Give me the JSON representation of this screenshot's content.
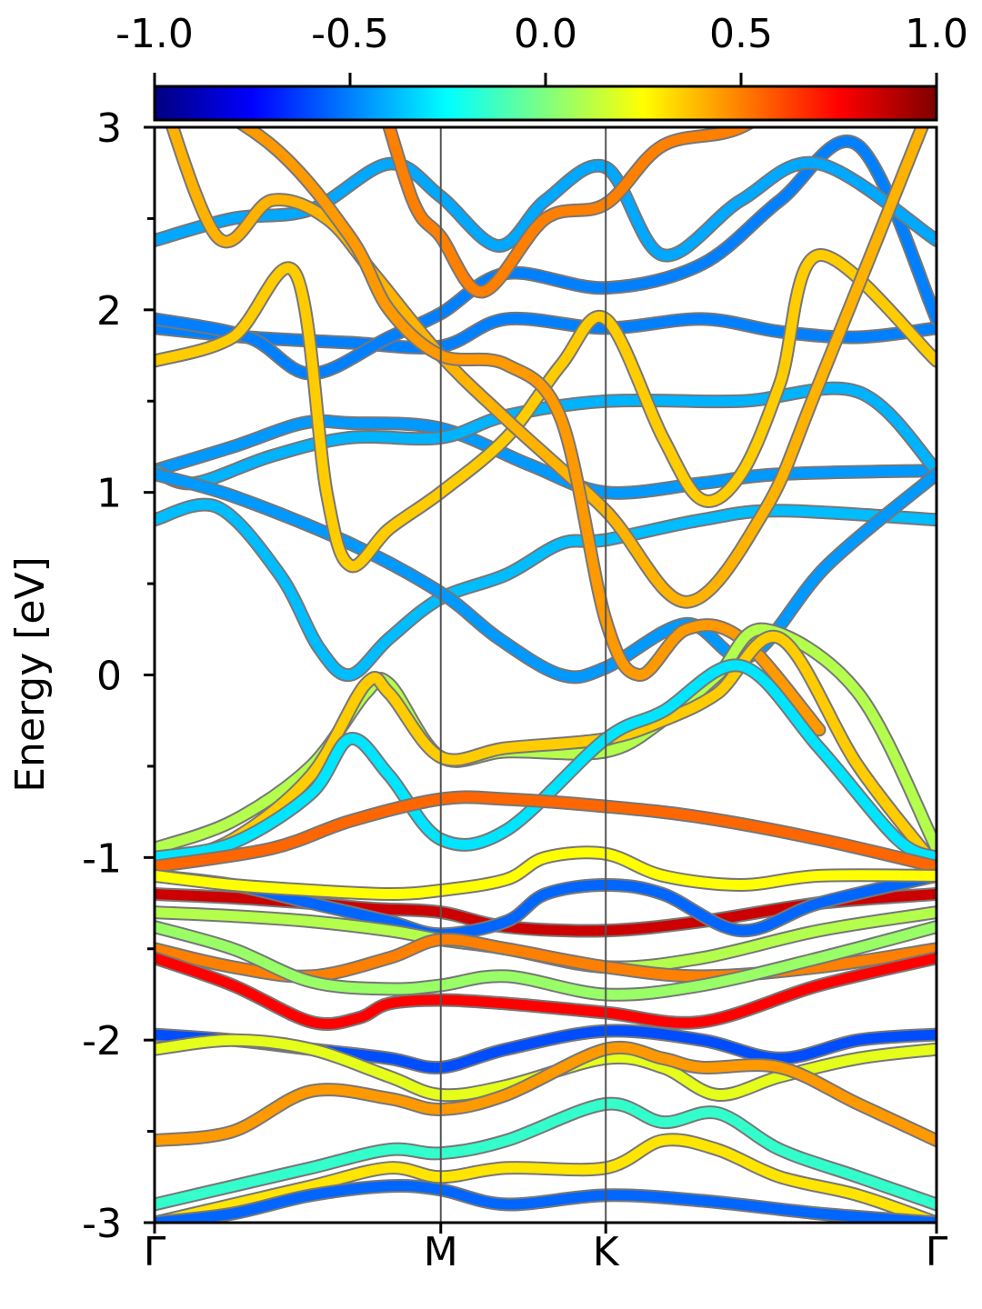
{
  "chart_data": {
    "type": "line",
    "ylabel": "Energy [eV]",
    "ylim": [
      -3,
      3
    ],
    "xlim": [
      0,
      1
    ],
    "grid": false,
    "y_ticks": [
      "3",
      "2",
      "1",
      "0",
      "-1",
      "-2",
      "-3"
    ],
    "y_tick_values": [
      3,
      2,
      1,
      0,
      -1,
      -2,
      -3
    ],
    "k_points": [
      {
        "label": "Γ",
        "x": 0.0
      },
      {
        "label": "M",
        "x": 0.366
      },
      {
        "label": "K",
        "x": 0.577
      },
      {
        "label": "Γ",
        "x": 1.0
      }
    ],
    "colorbar": {
      "range": [
        -1.0,
        1.0
      ],
      "colormap": "jet",
      "position": "top",
      "tick_labels": [
        "-1.0",
        "-0.5",
        "0.0",
        "0.5",
        "1.0"
      ],
      "tick_values": [
        -1.0,
        -0.5,
        0.0,
        0.5,
        1.0
      ]
    },
    "series": [
      {
        "color_value": -0.45,
        "x": [
          0,
          0.1,
          0.19,
          0.25,
          0.366,
          0.48,
          0.577,
          0.7,
          0.8,
          1.0
        ],
        "y": [
          1.12,
          1.25,
          1.38,
          1.38,
          1.35,
          1.15,
          1.0,
          1.05,
          1.1,
          1.12
        ]
      },
      {
        "color_value": -0.4,
        "x": [
          0,
          0.05,
          0.15,
          0.25,
          0.366,
          0.45,
          0.577,
          0.75,
          0.9,
          1.0
        ],
        "y": [
          1.12,
          1.05,
          1.2,
          1.3,
          1.3,
          1.42,
          1.5,
          1.5,
          1.55,
          1.12
        ]
      },
      {
        "color_value": -0.38,
        "x": [
          0,
          0.08,
          0.16,
          0.21,
          0.25,
          0.3,
          0.366,
          0.45,
          0.52,
          0.577,
          0.7,
          0.8,
          1.0
        ],
        "y": [
          0.85,
          0.92,
          0.55,
          0.15,
          0.0,
          0.2,
          0.42,
          0.55,
          0.72,
          0.74,
          0.85,
          0.9,
          0.85
        ]
      },
      {
        "color_value": -0.45,
        "x": [
          0,
          0.1,
          0.25,
          0.366,
          0.44,
          0.52,
          0.577,
          0.68,
          0.76,
          0.86,
          1.0
        ],
        "y": [
          1.1,
          0.98,
          0.72,
          0.45,
          0.2,
          0.0,
          0.04,
          0.28,
          0.1,
          0.6,
          1.1
        ]
      },
      {
        "color_value": -0.5,
        "x": [
          0,
          0.12,
          0.25,
          0.366,
          0.45,
          0.577,
          0.7,
          0.8,
          0.9,
          1.0
        ],
        "y": [
          1.9,
          1.85,
          1.82,
          1.8,
          1.95,
          1.9,
          1.95,
          1.88,
          1.85,
          1.9
        ]
      },
      {
        "color_value": -0.5,
        "x": [
          0,
          0.12,
          0.2,
          0.3,
          0.366,
          0.45,
          0.577,
          0.7,
          0.8,
          0.9,
          1.0
        ],
        "y": [
          1.95,
          1.85,
          1.65,
          1.85,
          1.98,
          2.2,
          2.12,
          2.25,
          2.6,
          2.9,
          1.95
        ]
      },
      {
        "color_value": -0.42,
        "x": [
          0,
          0.1,
          0.2,
          0.3,
          0.366,
          0.44,
          0.5,
          0.577,
          0.65,
          0.75,
          0.85,
          1.0
        ],
        "y": [
          2.38,
          2.5,
          2.55,
          2.8,
          2.62,
          2.35,
          2.6,
          2.78,
          2.3,
          2.6,
          2.8,
          2.38
        ]
      },
      {
        "color_value": 0.35,
        "x": [
          0,
          0.1,
          0.18,
          0.22,
          0.25,
          0.3,
          0.366,
          0.45,
          0.52,
          0.577,
          0.65,
          0.7,
          0.75,
          0.8,
          0.85,
          1.0
        ],
        "y": [
          1.72,
          1.85,
          2.2,
          1.0,
          0.6,
          0.8,
          1.0,
          1.3,
          1.7,
          1.95,
          1.3,
          0.96,
          1.1,
          1.6,
          2.3,
          1.72
        ]
      },
      {
        "color_value": 0.4,
        "x": [
          0,
          0.08,
          0.15,
          0.22,
          0.28,
          0.366,
          0.45,
          0.577,
          0.68,
          0.78,
          0.85,
          1.0
        ],
        "y": [
          3.3,
          2.4,
          2.6,
          2.5,
          2.2,
          1.75,
          1.4,
          0.9,
          0.4,
          0.9,
          1.6,
          3.2
        ]
      },
      {
        "color_value": 0.45,
        "x": [
          0,
          0.15,
          0.25,
          0.3,
          0.366,
          0.45,
          0.52,
          0.577,
          0.62,
          0.68,
          0.75,
          0.85
        ],
        "y": [
          3.3,
          2.9,
          2.4,
          2.0,
          1.75,
          1.7,
          1.4,
          0.3,
          0.0,
          0.25,
          0.2,
          -0.3
        ]
      },
      {
        "color_value": 0.5,
        "x": [
          0.28,
          0.33,
          0.366,
          0.42,
          0.5,
          0.577,
          0.65,
          0.75,
          0.85
        ],
        "y": [
          3.3,
          2.6,
          2.4,
          2.1,
          2.5,
          2.58,
          2.9,
          3.0,
          3.3
        ]
      },
      {
        "color_value": 0.1,
        "x": [
          0,
          0.1,
          0.2,
          0.27,
          0.3,
          0.366,
          0.45,
          0.577,
          0.65,
          0.72,
          0.78,
          0.9,
          1.0
        ],
        "y": [
          -0.95,
          -0.8,
          -0.5,
          -0.1,
          -0.05,
          -0.45,
          -0.42,
          -0.42,
          -0.25,
          0.0,
          0.25,
          -0.1,
          -0.95
        ]
      },
      {
        "color_value": 0.35,
        "x": [
          0,
          0.1,
          0.2,
          0.27,
          0.3,
          0.366,
          0.45,
          0.577,
          0.65,
          0.72,
          0.8,
          0.9,
          1.0
        ],
        "y": [
          -1.05,
          -0.9,
          -0.55,
          -0.05,
          -0.1,
          -0.45,
          -0.4,
          -0.35,
          -0.25,
          -0.1,
          0.2,
          -0.5,
          -1.05
        ]
      },
      {
        "color_value": -0.3,
        "x": [
          0,
          0.1,
          0.2,
          0.25,
          0.3,
          0.366,
          0.45,
          0.577,
          0.65,
          0.75,
          0.85,
          0.95,
          1.0
        ],
        "y": [
          -1.0,
          -0.92,
          -0.65,
          -0.35,
          -0.55,
          -0.9,
          -0.85,
          -0.35,
          -0.2,
          0.05,
          -0.4,
          -0.9,
          -1.0
        ]
      },
      {
        "color_value": 0.55,
        "x": [
          0,
          0.15,
          0.25,
          0.366,
          0.45,
          0.577,
          0.7,
          0.85,
          1.0
        ],
        "y": [
          -1.05,
          -0.95,
          -0.8,
          -0.68,
          -0.68,
          -0.72,
          -0.78,
          -0.9,
          -1.05
        ]
      },
      {
        "color_value": 0.85,
        "x": [
          0,
          0.1,
          0.2,
          0.28,
          0.366,
          0.45,
          0.577,
          0.7,
          0.85,
          1.0
        ],
        "y": [
          -1.2,
          -1.22,
          -1.25,
          -1.28,
          -1.3,
          -1.38,
          -1.4,
          -1.35,
          -1.25,
          -1.2
        ]
      },
      {
        "color_value": -0.55,
        "x": [
          0,
          0.1,
          0.2,
          0.3,
          0.366,
          0.45,
          0.5,
          0.577,
          0.65,
          0.75,
          0.85,
          1.0
        ],
        "y": [
          -1.1,
          -1.15,
          -1.25,
          -1.35,
          -1.42,
          -1.35,
          -1.2,
          -1.15,
          -1.2,
          -1.4,
          -1.25,
          -1.1
        ]
      },
      {
        "color_value": 0.25,
        "x": [
          0,
          0.1,
          0.2,
          0.3,
          0.366,
          0.45,
          0.5,
          0.577,
          0.65,
          0.75,
          0.85,
          1.0
        ],
        "y": [
          -1.1,
          -1.15,
          -1.18,
          -1.2,
          -1.18,
          -1.12,
          -1.0,
          -0.98,
          -1.1,
          -1.15,
          -1.1,
          -1.1
        ]
      },
      {
        "color_value": 0.1,
        "x": [
          0,
          0.1,
          0.2,
          0.3,
          0.366,
          0.45,
          0.577,
          0.7,
          0.85,
          1.0
        ],
        "y": [
          -1.3,
          -1.32,
          -1.35,
          -1.4,
          -1.45,
          -1.5,
          -1.6,
          -1.55,
          -1.4,
          -1.3
        ]
      },
      {
        "color_value": 0.5,
        "x": [
          0,
          0.1,
          0.2,
          0.3,
          0.366,
          0.45,
          0.577,
          0.7,
          0.85,
          1.0
        ],
        "y": [
          -1.5,
          -1.6,
          -1.65,
          -1.55,
          -1.45,
          -1.5,
          -1.6,
          -1.65,
          -1.6,
          -1.5
        ]
      },
      {
        "color_value": 0.05,
        "x": [
          0,
          0.1,
          0.2,
          0.3,
          0.366,
          0.45,
          0.577,
          0.7,
          0.85,
          1.0
        ],
        "y": [
          -1.38,
          -1.5,
          -1.68,
          -1.72,
          -1.7,
          -1.65,
          -1.75,
          -1.7,
          -1.55,
          -1.38
        ]
      },
      {
        "color_value": 0.75,
        "x": [
          0,
          0.1,
          0.2,
          0.26,
          0.3,
          0.366,
          0.45,
          0.577,
          0.7,
          0.85,
          1.0
        ],
        "y": [
          -1.55,
          -1.7,
          -1.9,
          -1.88,
          -1.8,
          -1.78,
          -1.8,
          -1.85,
          -1.9,
          -1.7,
          -1.55
        ]
      },
      {
        "color_value": -0.6,
        "x": [
          0,
          0.1,
          0.2,
          0.3,
          0.366,
          0.45,
          0.577,
          0.7,
          0.8,
          0.9,
          1.0
        ],
        "y": [
          -1.97,
          -2.0,
          -2.05,
          -2.1,
          -2.15,
          -2.05,
          -1.95,
          -2.0,
          -2.1,
          -2.0,
          -1.97
        ]
      },
      {
        "color_value": 0.2,
        "x": [
          0,
          0.1,
          0.2,
          0.3,
          0.366,
          0.45,
          0.577,
          0.65,
          0.72,
          0.8,
          0.9,
          1.0
        ],
        "y": [
          -2.05,
          -2.0,
          -2.05,
          -2.2,
          -2.3,
          -2.25,
          -2.1,
          -2.15,
          -2.3,
          -2.2,
          -2.1,
          -2.05
        ]
      },
      {
        "color_value": 0.45,
        "x": [
          0,
          0.1,
          0.2,
          0.3,
          0.366,
          0.45,
          0.577,
          0.65,
          0.7,
          0.8,
          0.9,
          1.0
        ],
        "y": [
          -2.55,
          -2.5,
          -2.28,
          -2.32,
          -2.38,
          -2.3,
          -2.05,
          -2.1,
          -2.15,
          -2.15,
          -2.35,
          -2.55
        ]
      },
      {
        "color_value": -0.15,
        "x": [
          0,
          0.1,
          0.2,
          0.3,
          0.366,
          0.45,
          0.577,
          0.65,
          0.72,
          0.8,
          0.9,
          1.0
        ],
        "y": [
          -2.9,
          -2.8,
          -2.7,
          -2.6,
          -2.62,
          -2.55,
          -2.35,
          -2.45,
          -2.4,
          -2.6,
          -2.75,
          -2.9
        ]
      },
      {
        "color_value": 0.3,
        "x": [
          0,
          0.1,
          0.2,
          0.3,
          0.366,
          0.45,
          0.577,
          0.65,
          0.72,
          0.8,
          0.9,
          1.0
        ],
        "y": [
          -3.0,
          -2.9,
          -2.8,
          -2.7,
          -2.75,
          -2.7,
          -2.7,
          -2.55,
          -2.6,
          -2.75,
          -2.85,
          -3.0
        ]
      },
      {
        "color_value": -0.55,
        "x": [
          0,
          0.1,
          0.2,
          0.3,
          0.366,
          0.45,
          0.577,
          0.7,
          0.85,
          1.0
        ],
        "y": [
          -3.0,
          -2.95,
          -2.85,
          -2.8,
          -2.82,
          -2.9,
          -2.85,
          -2.88,
          -2.95,
          -3.0
        ]
      }
    ]
  }
}
